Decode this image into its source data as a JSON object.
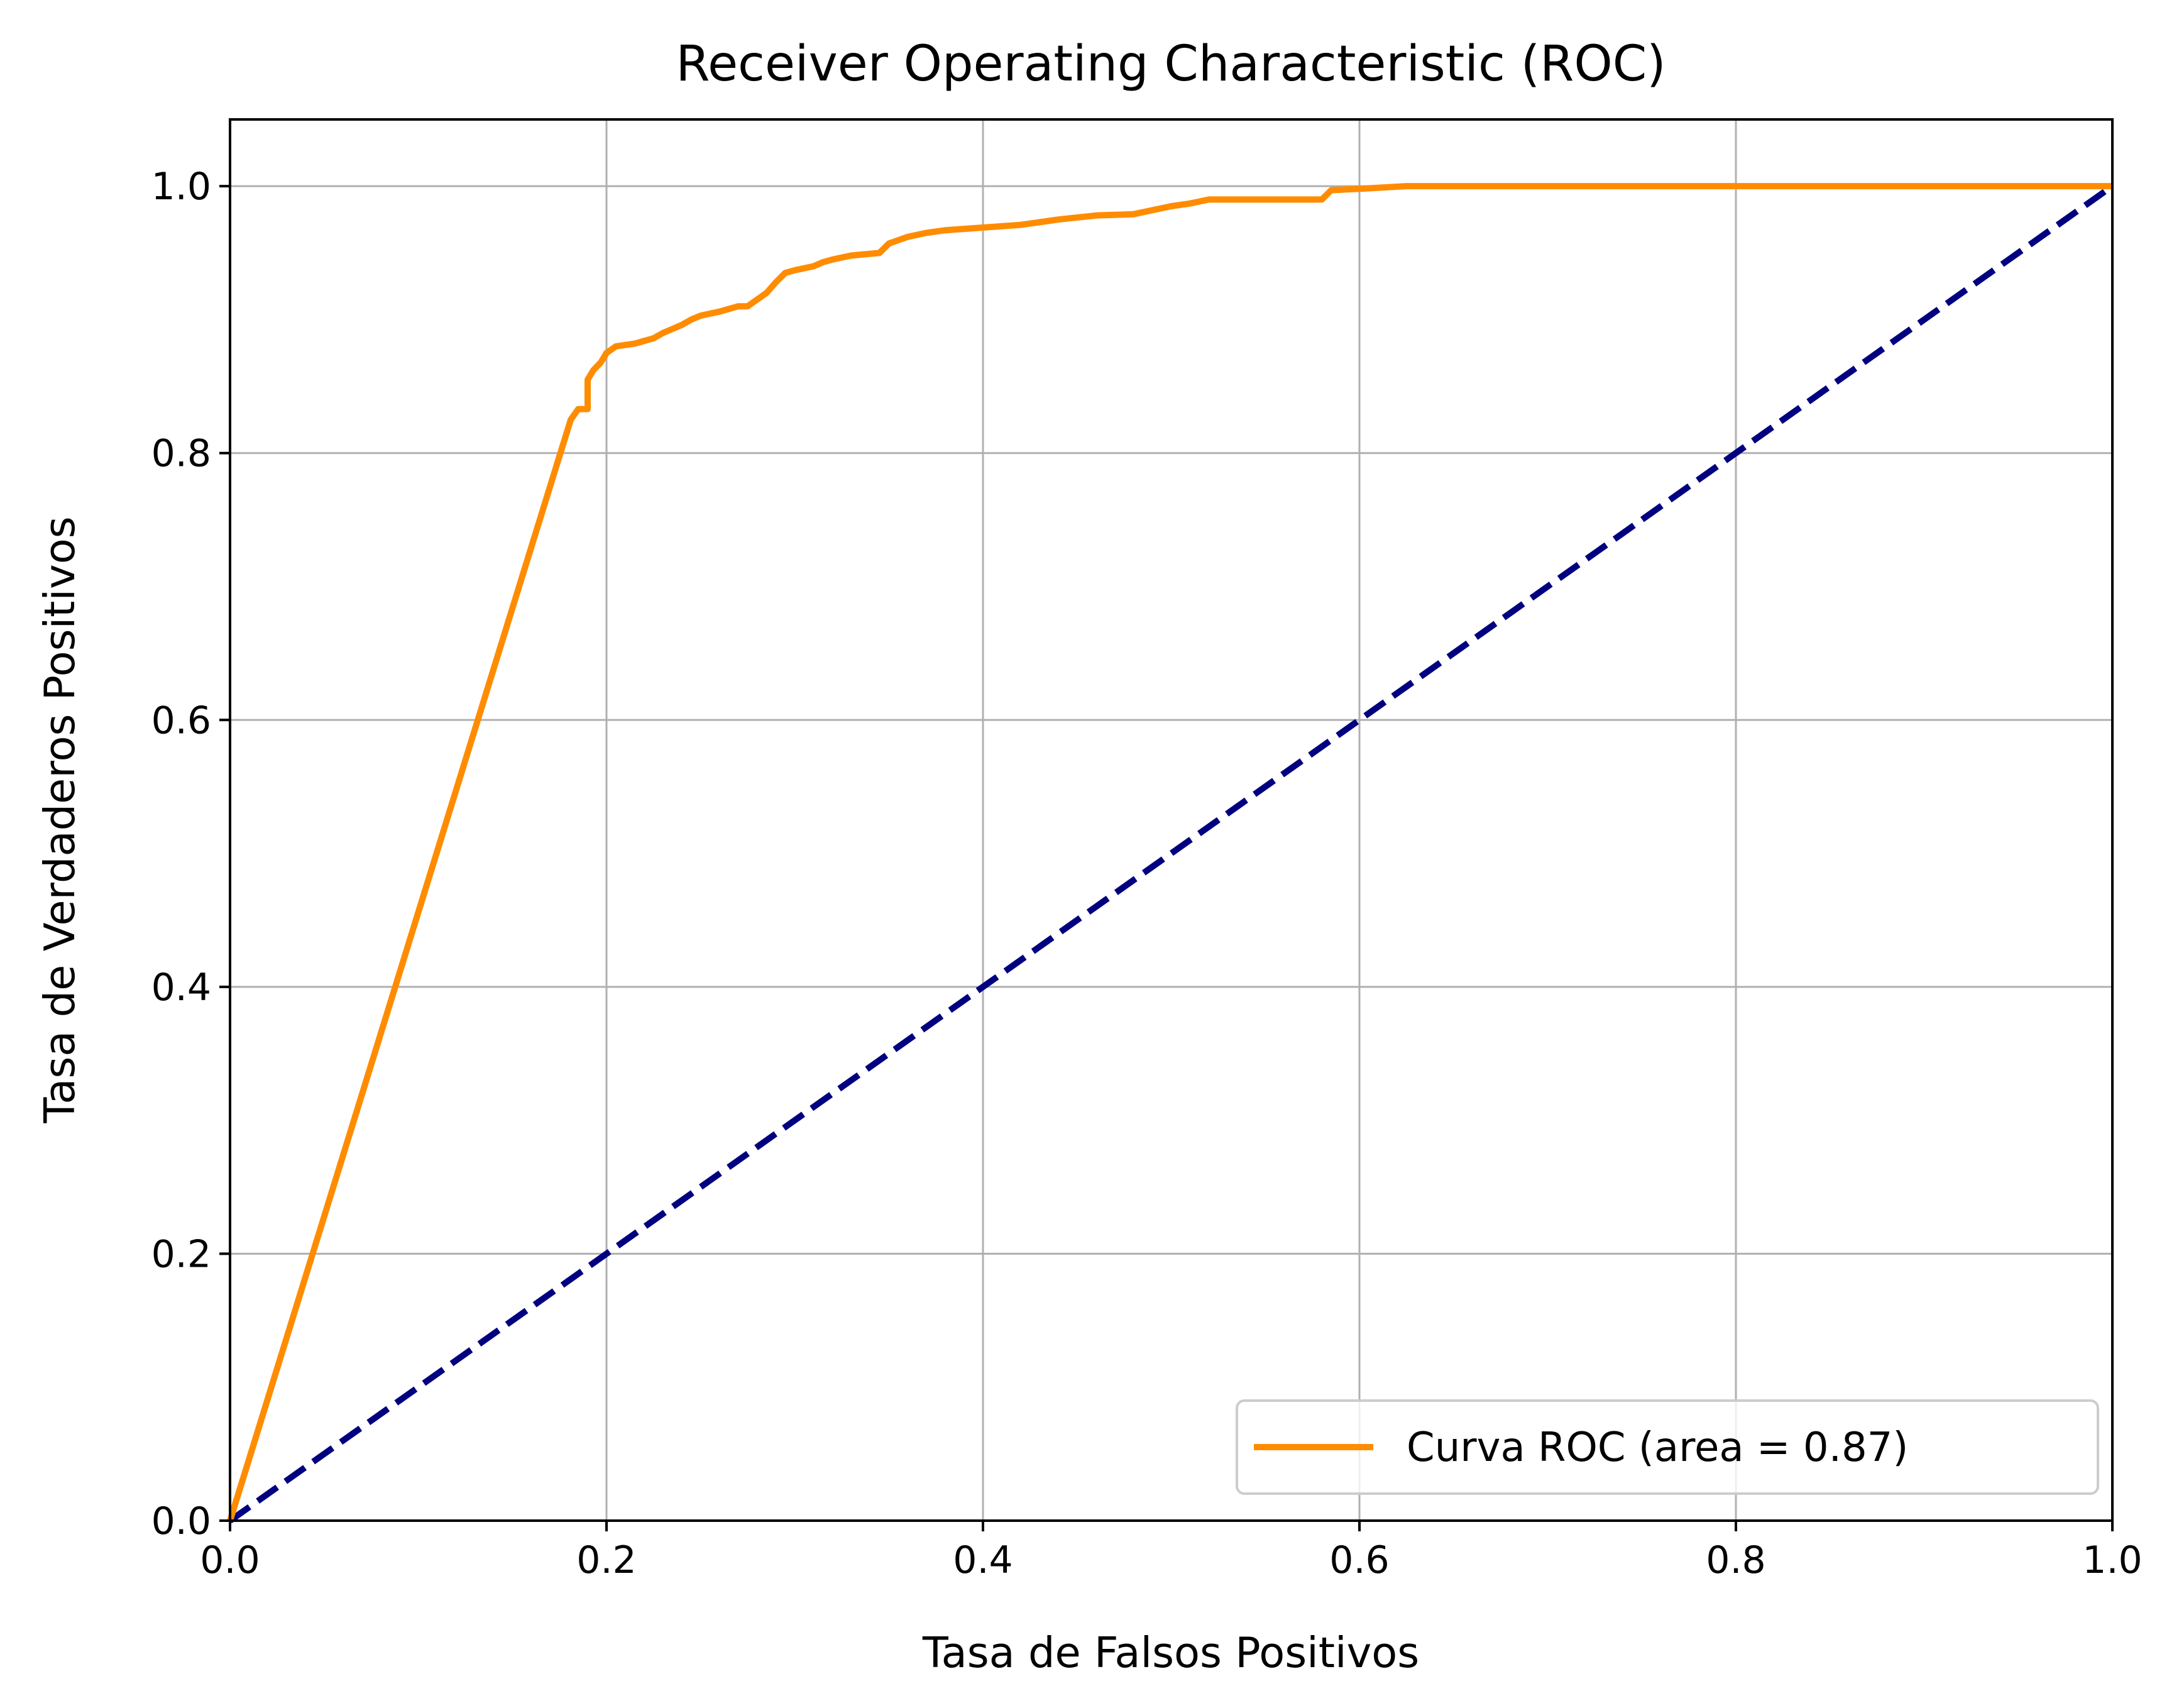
{
  "chart_data": {
    "type": "line",
    "title": "Receiver Operating Characteristic (ROC)",
    "xlabel": "Tasa de Falsos Positivos",
    "ylabel": "Tasa de Verdaderos Positivos",
    "xlim": [
      0.0,
      1.0
    ],
    "ylim": [
      0.0,
      1.05
    ],
    "xticks": [
      0.0,
      0.2,
      0.4,
      0.6,
      0.8,
      1.0
    ],
    "yticks": [
      0.0,
      0.2,
      0.4,
      0.6,
      0.8,
      1.0
    ],
    "xtick_labels": [
      "0.0",
      "0.2",
      "0.4",
      "0.6",
      "0.8",
      "1.0"
    ],
    "ytick_labels": [
      "0.0",
      "0.2",
      "0.4",
      "0.6",
      "0.8",
      "1.0"
    ],
    "grid": true,
    "legend_position": "lower-right",
    "series": [
      {
        "name": "Curva ROC (area = 0.87)",
        "color": "#ff8c00",
        "style": "solid",
        "x": [
          0.0,
          0.181,
          0.185,
          0.19,
          0.19,
          0.193,
          0.197,
          0.2,
          0.205,
          0.215,
          0.225,
          0.23,
          0.235,
          0.24,
          0.245,
          0.25,
          0.26,
          0.27,
          0.275,
          0.28,
          0.285,
          0.29,
          0.295,
          0.3,
          0.31,
          0.315,
          0.32,
          0.33,
          0.345,
          0.35,
          0.36,
          0.37,
          0.38,
          0.4,
          0.42,
          0.43,
          0.44,
          0.46,
          0.48,
          0.49,
          0.5,
          0.51,
          0.52,
          0.54,
          0.55,
          0.58,
          0.585,
          0.6,
          0.625,
          0.7,
          0.8,
          0.9,
          1.0
        ],
        "y": [
          0.0,
          0.825,
          0.833,
          0.833,
          0.855,
          0.862,
          0.868,
          0.875,
          0.88,
          0.882,
          0.886,
          0.89,
          0.893,
          0.896,
          0.9,
          0.903,
          0.906,
          0.91,
          0.91,
          0.915,
          0.92,
          0.928,
          0.935,
          0.937,
          0.94,
          0.943,
          0.945,
          0.948,
          0.95,
          0.957,
          0.962,
          0.965,
          0.967,
          0.969,
          0.971,
          0.973,
          0.975,
          0.978,
          0.979,
          0.982,
          0.985,
          0.987,
          0.99,
          0.99,
          0.99,
          0.99,
          0.997,
          0.998,
          1.0,
          1.0,
          1.0,
          1.0,
          1.0
        ]
      },
      {
        "name": "",
        "color": "#000080",
        "style": "dashed",
        "x": [
          0.0,
          1.0
        ],
        "y": [
          0.0,
          1.0
        ]
      }
    ]
  }
}
